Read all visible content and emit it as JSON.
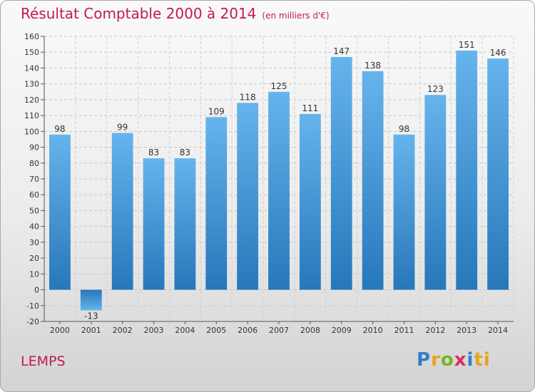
{
  "title": "Résultat Comptable 2000 à 2014",
  "unit": "(en milliers d'€)",
  "commune": "LEMPS",
  "logo": {
    "parts": [
      "P",
      "r",
      "o",
      "x",
      "i",
      "ti"
    ]
  },
  "colors": {
    "title": "#c2185b",
    "bar_light": "#62b1ea",
    "bar_dark": "#2a7bbf"
  },
  "chart_data": {
    "type": "bar",
    "title": "Résultat Comptable 2000 à 2014",
    "ylabel": "en milliers d'€",
    "categories": [
      "2000",
      "2001",
      "2002",
      "2003",
      "2004",
      "2005",
      "2006",
      "2007",
      "2008",
      "2009",
      "2010",
      "2011",
      "2012",
      "2013",
      "2014"
    ],
    "values": [
      98,
      -13,
      99,
      83,
      83,
      109,
      118,
      125,
      111,
      147,
      138,
      98,
      123,
      151,
      146
    ],
    "value_labels": [
      "98",
      "-13",
      "99",
      "83",
      "83",
      "109",
      "118",
      "125",
      "111",
      "147",
      "138",
      "98",
      "123",
      "151",
      "146"
    ],
    "ylim": [
      -20,
      160
    ],
    "yticks": [
      -20,
      -10,
      0,
      10,
      20,
      30,
      40,
      50,
      60,
      70,
      80,
      90,
      100,
      110,
      120,
      130,
      140,
      150,
      160
    ],
    "grid": true
  }
}
